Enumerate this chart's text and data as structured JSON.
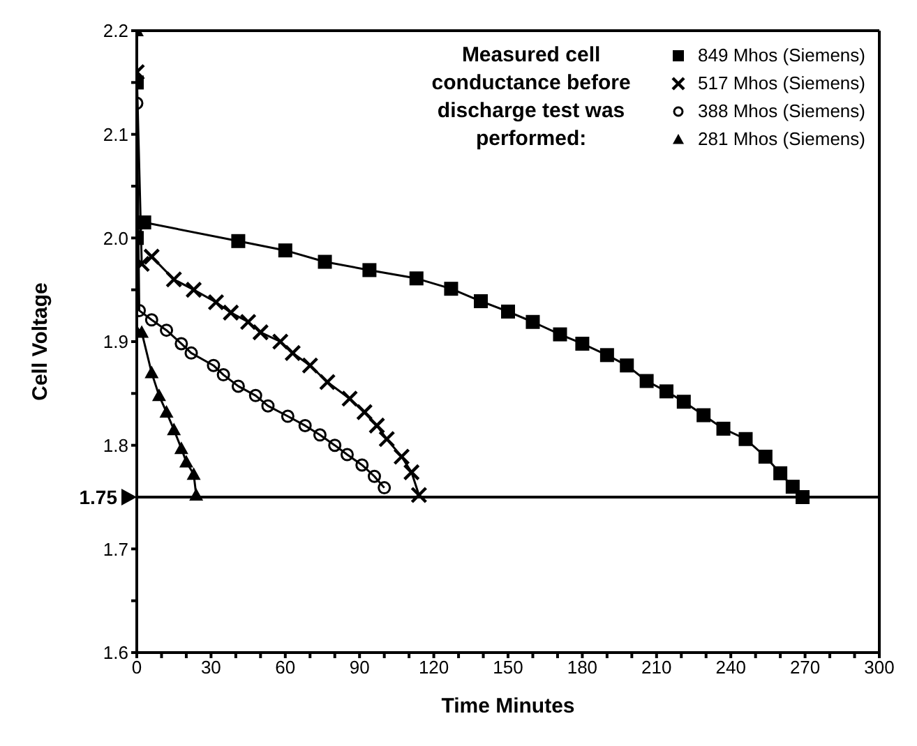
{
  "chart_data": {
    "type": "line",
    "xlabel": "Time  Minutes",
    "ylabel": "Cell  Voltage",
    "legend_title": "Measured cell conductance before discharge test was performed:",
    "legend": "top right",
    "grid": false,
    "line_style": "solid",
    "xlim": [
      0,
      300
    ],
    "ylim": [
      1.6,
      2.2
    ],
    "xticks": [
      0,
      {
        "value": 10,
        "label": null
      },
      {
        "value": 20,
        "label": null
      },
      30,
      {
        "value": 40,
        "label": null
      },
      {
        "value": 50,
        "label": null
      },
      60,
      {
        "value": 70,
        "label": null
      },
      {
        "value": 80,
        "label": null
      },
      90,
      {
        "value": 100,
        "label": null
      },
      {
        "value": 110,
        "label": null
      },
      120,
      {
        "value": 130,
        "label": null
      },
      {
        "value": 140,
        "label": null
      },
      150,
      {
        "value": 160,
        "label": null
      },
      {
        "value": 170,
        "label": null
      },
      180,
      {
        "value": 190,
        "label": null
      },
      {
        "value": 200,
        "label": null
      },
      210,
      {
        "value": 220,
        "label": null
      },
      {
        "value": 230,
        "label": null
      },
      240,
      {
        "value": 250,
        "label": null
      },
      {
        "value": 260,
        "label": null
      },
      270,
      {
        "value": 280,
        "label": null
      },
      {
        "value": 290,
        "label": null
      },
      300
    ],
    "yticks": [
      1.6,
      {
        "value": 1.65,
        "label": null
      },
      1.7,
      1.8,
      {
        "value": 1.85,
        "label": null
      },
      1.9,
      {
        "value": 1.95,
        "label": null
      },
      {
        "value": 2,
        "label": "2.0"
      },
      {
        "value": 2.05,
        "label": null
      },
      2.1,
      {
        "value": 2.15,
        "label": null
      },
      2.2
    ],
    "ref_lines": [
      {
        "axis": "y",
        "value": 1.75,
        "label": "1.75",
        "color": "#000000",
        "line_style": "solid"
      }
    ],
    "series": [
      {
        "name": "849 Mhos (Siemens)",
        "color": "#000000",
        "marker": "square",
        "x": [
          0,
          0,
          3,
          41,
          60,
          76,
          94,
          113,
          127,
          139,
          150,
          160,
          171,
          180,
          190,
          198,
          206,
          214,
          221,
          229,
          237,
          246,
          254,
          260,
          265,
          269
        ],
        "values": [
          2.15,
          2.0,
          2.015,
          1.997,
          1.988,
          1.977,
          1.969,
          1.961,
          1.951,
          1.939,
          1.929,
          1.919,
          1.907,
          1.898,
          1.887,
          1.877,
          1.862,
          1.852,
          1.842,
          1.829,
          1.816,
          1.806,
          1.789,
          1.773,
          1.76,
          1.75
        ]
      },
      {
        "name": "517 Mhos (Siemens)",
        "color": "#000000",
        "marker": "cross",
        "x": [
          0,
          2,
          6,
          15,
          23,
          32,
          38,
          45,
          50,
          58,
          63,
          70,
          77,
          86,
          92,
          97,
          101,
          107,
          111,
          114
        ],
        "values": [
          2.16,
          1.975,
          1.982,
          1.96,
          1.95,
          1.938,
          1.928,
          1.919,
          1.909,
          1.9,
          1.889,
          1.877,
          1.861,
          1.845,
          1.832,
          1.819,
          1.806,
          1.789,
          1.774,
          1.752
        ]
      },
      {
        "name": "388 Mhos (Siemens)",
        "color": "#000000",
        "marker": "circle",
        "x": [
          0,
          1,
          6,
          12,
          18,
          22,
          31,
          35,
          41,
          48,
          53,
          61,
          68,
          74,
          80,
          85,
          91,
          96,
          100
        ],
        "values": [
          2.13,
          1.93,
          1.921,
          1.911,
          1.898,
          1.889,
          1.877,
          1.868,
          1.857,
          1.848,
          1.838,
          1.828,
          1.819,
          1.81,
          1.8,
          1.791,
          1.781,
          1.77,
          1.759
        ]
      },
      {
        "name": "281 Mhos (Siemens)",
        "color": "#000000",
        "marker": "triangle",
        "x": [
          0,
          0,
          2,
          6,
          9,
          12,
          15,
          18,
          20,
          23,
          24
        ],
        "values": [
          2.2,
          1.91,
          1.909,
          1.87,
          1.848,
          1.832,
          1.815,
          1.797,
          1.784,
          1.772,
          1.752
        ]
      }
    ]
  }
}
